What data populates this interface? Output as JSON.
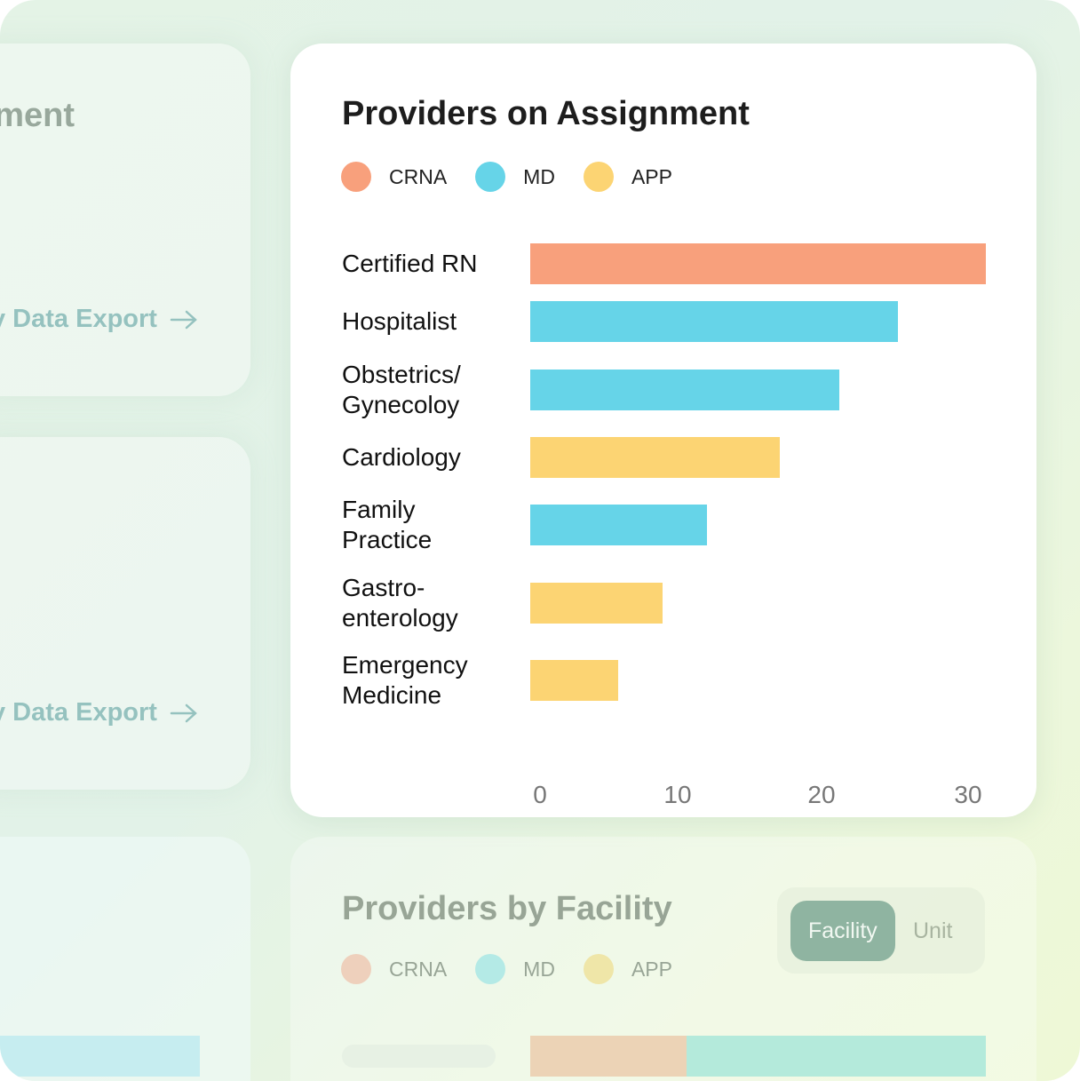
{
  "side_cards": [
    {
      "title": "ment",
      "link": "y Data Export",
      "link_icon": "arrow-right-icon"
    },
    {
      "link": "y Data Export",
      "link_icon": "arrow-right-icon"
    }
  ],
  "colors": {
    "CRNA": "#f8a07c",
    "MD": "#66d4e8",
    "APP": "#fcd473"
  },
  "chart_data": {
    "type": "bar",
    "orientation": "horizontal",
    "title": "Providers on Assignment",
    "legend": [
      "CRNA",
      "MD",
      "APP"
    ],
    "legend_placement": "top-left",
    "categories": [
      "Certified RN",
      "Hospitalist",
      "Obstetrics/ Gynecoloy",
      "Cardiology",
      "Family Practice",
      "Gastro- enterology",
      "Emergency Medicine"
    ],
    "category_lines": [
      [
        "Certified RN"
      ],
      [
        "Hospitalist"
      ],
      [
        "Obstetrics/",
        "Gynecoloy"
      ],
      [
        "Cardiology"
      ],
      [
        "Family",
        "Practice"
      ],
      [
        "Gastro-",
        "enterology"
      ],
      [
        "Emergency",
        "Medicine"
      ]
    ],
    "values": [
      31,
      25,
      21,
      17,
      12,
      9,
      6
    ],
    "groups": [
      "CRNA",
      "MD",
      "MD",
      "APP",
      "MD",
      "APP",
      "APP"
    ],
    "xticks": [
      "0",
      "10",
      "20",
      "30"
    ],
    "xlim": [
      0,
      31
    ],
    "grid": false
  },
  "bottom_card": {
    "title": "Providers by Facility",
    "legend": [
      "CRNA",
      "MD",
      "APP"
    ],
    "legend_colors": [
      "#eed0bc",
      "#b4eae6",
      "#efe6a8"
    ],
    "toggle": {
      "options": [
        "Facility",
        "Unit"
      ],
      "selected": "Facility"
    }
  }
}
